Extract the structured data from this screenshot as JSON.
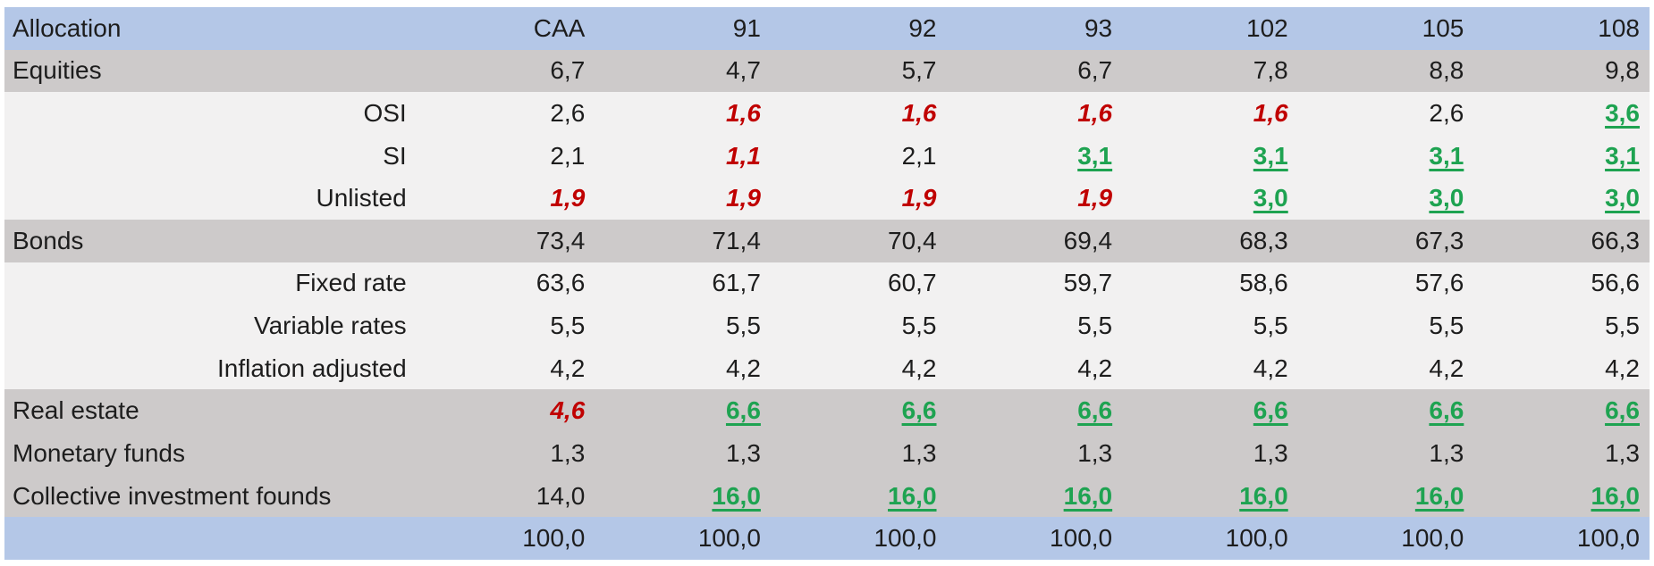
{
  "colors": {
    "header_bg": "#B4C7E7",
    "group_row_bg": "#CDCACA",
    "detail_row_bg": "#F2F1F1",
    "total_row_bg": "#B4C7E7",
    "text": "#1D1D1D",
    "decrease_red": "#C00000",
    "increase_green": "#1EA351"
  },
  "table": {
    "header": {
      "label": "Allocation",
      "columns": [
        "CAA",
        "91",
        "92",
        "93",
        "102",
        "105",
        "108"
      ]
    },
    "rows": [
      {
        "label": "Equities",
        "level": "group",
        "bg": "gray",
        "cells": [
          {
            "v": "6,7"
          },
          {
            "v": "4,7"
          },
          {
            "v": "5,7"
          },
          {
            "v": "6,7"
          },
          {
            "v": "7,8"
          },
          {
            "v": "8,8"
          },
          {
            "v": "9,8"
          }
        ]
      },
      {
        "label": "OSI",
        "level": "sub",
        "bg": "light",
        "cells": [
          {
            "v": "2,6"
          },
          {
            "v": "1,6",
            "emphasis": "red"
          },
          {
            "v": "1,6",
            "emphasis": "red"
          },
          {
            "v": "1,6",
            "emphasis": "red"
          },
          {
            "v": "1,6",
            "emphasis": "red"
          },
          {
            "v": "2,6"
          },
          {
            "v": "3,6",
            "emphasis": "green"
          }
        ]
      },
      {
        "label": "SI",
        "level": "sub",
        "bg": "light",
        "cells": [
          {
            "v": "2,1"
          },
          {
            "v": "1,1",
            "emphasis": "red"
          },
          {
            "v": "2,1"
          },
          {
            "v": "3,1",
            "emphasis": "green"
          },
          {
            "v": "3,1",
            "emphasis": "green"
          },
          {
            "v": "3,1",
            "emphasis": "green"
          },
          {
            "v": "3,1",
            "emphasis": "green"
          }
        ]
      },
      {
        "label": "Unlisted",
        "level": "sub",
        "bg": "light",
        "cells": [
          {
            "v": "1,9",
            "emphasis": "red"
          },
          {
            "v": "1,9",
            "emphasis": "red"
          },
          {
            "v": "1,9",
            "emphasis": "red"
          },
          {
            "v": "1,9",
            "emphasis": "red"
          },
          {
            "v": "3,0",
            "emphasis": "green"
          },
          {
            "v": "3,0",
            "emphasis": "green"
          },
          {
            "v": "3,0",
            "emphasis": "green"
          }
        ]
      },
      {
        "label": "Bonds",
        "level": "group",
        "bg": "gray",
        "cells": [
          {
            "v": "73,4"
          },
          {
            "v": "71,4"
          },
          {
            "v": "70,4"
          },
          {
            "v": "69,4"
          },
          {
            "v": "68,3"
          },
          {
            "v": "67,3"
          },
          {
            "v": "66,3"
          }
        ]
      },
      {
        "label": "Fixed rate",
        "level": "sub",
        "bg": "light",
        "cells": [
          {
            "v": "63,6"
          },
          {
            "v": "61,7"
          },
          {
            "v": "60,7"
          },
          {
            "v": "59,7"
          },
          {
            "v": "58,6"
          },
          {
            "v": "57,6"
          },
          {
            "v": "56,6"
          }
        ]
      },
      {
        "label": "Variable rates",
        "level": "sub",
        "bg": "light",
        "cells": [
          {
            "v": "5,5"
          },
          {
            "v": "5,5"
          },
          {
            "v": "5,5"
          },
          {
            "v": "5,5"
          },
          {
            "v": "5,5"
          },
          {
            "v": "5,5"
          },
          {
            "v": "5,5"
          }
        ]
      },
      {
        "label": "Inflation adjusted",
        "level": "sub",
        "bg": "light",
        "cells": [
          {
            "v": "4,2"
          },
          {
            "v": "4,2"
          },
          {
            "v": "4,2"
          },
          {
            "v": "4,2"
          },
          {
            "v": "4,2"
          },
          {
            "v": "4,2"
          },
          {
            "v": "4,2"
          }
        ]
      },
      {
        "label": "Real estate",
        "level": "group",
        "bg": "gray",
        "cells": [
          {
            "v": "4,6",
            "emphasis": "red"
          },
          {
            "v": "6,6",
            "emphasis": "green"
          },
          {
            "v": "6,6",
            "emphasis": "green"
          },
          {
            "v": "6,6",
            "emphasis": "green"
          },
          {
            "v": "6,6",
            "emphasis": "green"
          },
          {
            "v": "6,6",
            "emphasis": "green"
          },
          {
            "v": "6,6",
            "emphasis": "green"
          }
        ]
      },
      {
        "label": "Monetary funds",
        "level": "group",
        "bg": "gray",
        "cells": [
          {
            "v": "1,3"
          },
          {
            "v": "1,3"
          },
          {
            "v": "1,3"
          },
          {
            "v": "1,3"
          },
          {
            "v": "1,3"
          },
          {
            "v": "1,3"
          },
          {
            "v": "1,3"
          }
        ]
      },
      {
        "label": "Collective investment founds",
        "level": "group",
        "bg": "gray",
        "cells": [
          {
            "v": "14,0"
          },
          {
            "v": "16,0",
            "emphasis": "green"
          },
          {
            "v": "16,0",
            "emphasis": "green"
          },
          {
            "v": "16,0",
            "emphasis": "green"
          },
          {
            "v": "16,0",
            "emphasis": "green"
          },
          {
            "v": "16,0",
            "emphasis": "green"
          },
          {
            "v": "16,0",
            "emphasis": "green"
          }
        ]
      }
    ],
    "total_row": {
      "label": "",
      "cells": [
        {
          "v": "100,0"
        },
        {
          "v": "100,0"
        },
        {
          "v": "100,0"
        },
        {
          "v": "100,0"
        },
        {
          "v": "100,0"
        },
        {
          "v": "100,0"
        },
        {
          "v": "100,0"
        }
      ]
    }
  }
}
